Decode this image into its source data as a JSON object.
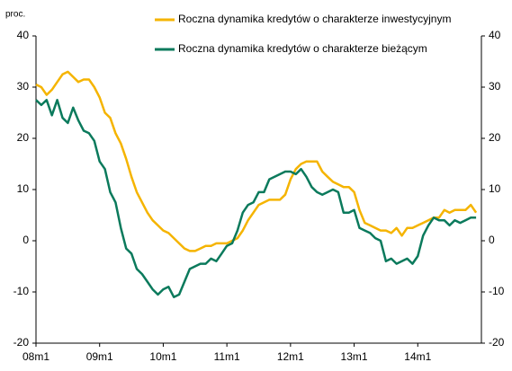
{
  "chart_data": {
    "type": "line",
    "ylabel": "proc.",
    "categories": [
      "08m1",
      null,
      null,
      null,
      null,
      null,
      null,
      null,
      null,
      null,
      null,
      null,
      "09m1",
      null,
      null,
      null,
      null,
      null,
      null,
      null,
      null,
      null,
      null,
      null,
      "10m1",
      null,
      null,
      null,
      null,
      null,
      null,
      null,
      null,
      null,
      null,
      null,
      "11m1",
      null,
      null,
      null,
      null,
      null,
      null,
      null,
      null,
      null,
      null,
      null,
      "12m1",
      null,
      null,
      null,
      null,
      null,
      null,
      null,
      null,
      null,
      null,
      null,
      "13m1",
      null,
      null,
      null,
      null,
      null,
      null,
      null,
      null,
      null,
      null,
      null,
      "14m1",
      null,
      null,
      null,
      null,
      null,
      null,
      null,
      null,
      null,
      null,
      null
    ],
    "series": [
      {
        "name": "Roczna dynamika kredytów o charakterze inwestycyjnym",
        "color": "#f5b400",
        "values": [
          30.5,
          30,
          28.5,
          29.5,
          31,
          32.5,
          33,
          32,
          31,
          31.5,
          31.5,
          30,
          28,
          25,
          24,
          21,
          19,
          16,
          12.5,
          9.5,
          7.5,
          5.5,
          4,
          3,
          2,
          1.5,
          0.5,
          -0.5,
          -1.5,
          -2,
          -2,
          -1.5,
          -1,
          -1,
          -0.5,
          -0.5,
          -0.5,
          0,
          0.5,
          2,
          4,
          5.5,
          7,
          7.5,
          8,
          8,
          8,
          9,
          12,
          14,
          15,
          15.5,
          15.5,
          15.5,
          13.5,
          12.5,
          11.5,
          11,
          10.5,
          10.5,
          9.5,
          6,
          3.5,
          3,
          2.5,
          2,
          2,
          1.5,
          2.5,
          1,
          2.5,
          2.5,
          3,
          3.5,
          4,
          4.5,
          4.5,
          6,
          5.5,
          6,
          6,
          6,
          7,
          5.5
        ]
      },
      {
        "name": "Roczna dynamika kredytów o charakterze bieżącym",
        "color": "#0b7a5c",
        "values": [
          27.5,
          26.5,
          27.5,
          24.5,
          27.5,
          24,
          23,
          26,
          23.5,
          21.5,
          21,
          19.5,
          15.5,
          14,
          9.5,
          7.5,
          2.5,
          -1.5,
          -2.5,
          -5.5,
          -6.5,
          -8,
          -9.5,
          -10.5,
          -9.5,
          -9,
          -11,
          -10.5,
          -8,
          -5.5,
          -5,
          -4.5,
          -4.5,
          -3.5,
          -4,
          -2.5,
          -1,
          -0.5,
          2,
          5.5,
          7,
          7.5,
          9.5,
          9.5,
          12,
          12.5,
          13,
          13.5,
          13.5,
          13,
          14,
          12.5,
          10.5,
          9.5,
          9,
          9.5,
          10,
          9.5,
          5.5,
          5.5,
          6,
          2.5,
          2,
          1.5,
          0.5,
          0,
          -4,
          -3.5,
          -4.5,
          -4,
          -3.5,
          -4.5,
          -3,
          1,
          3,
          4.5,
          4,
          4,
          3,
          4,
          3.5,
          4,
          4.5,
          4.5
        ]
      }
    ],
    "ylim": [
      -20,
      40
    ],
    "yticks": [
      -20,
      -10,
      0,
      10,
      20,
      30,
      40
    ],
    "y2lim": [
      -20,
      40
    ],
    "y2ticks": [
      -20,
      -10,
      0,
      10,
      20,
      30,
      40
    ]
  }
}
